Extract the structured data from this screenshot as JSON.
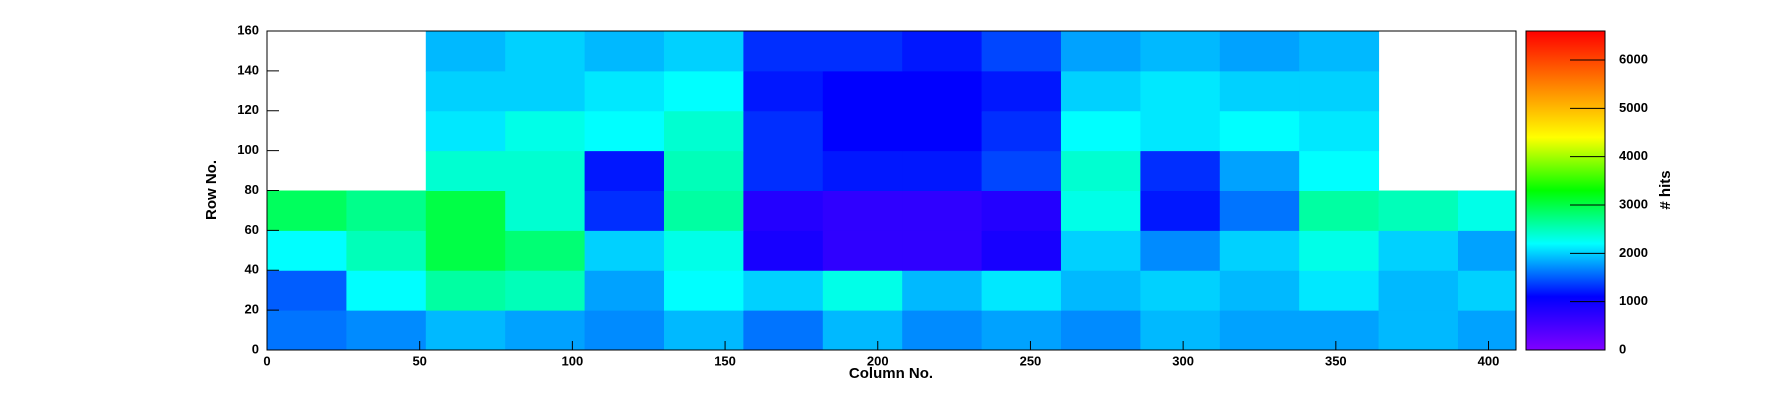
{
  "chart_data": {
    "type": "heatmap",
    "xlabel": "Column No.",
    "ylabel": "Row No.",
    "zlabel": "# hits",
    "xbins": [
      0,
      26,
      52,
      78,
      104,
      130,
      156,
      182,
      208,
      234,
      260,
      286,
      312,
      338,
      364,
      390,
      409
    ],
    "ybins": [
      0,
      20,
      40,
      60,
      80,
      100,
      120,
      140,
      160
    ],
    "z": [
      [
        1600,
        1700,
        1900,
        1800,
        1700,
        1900,
        1600,
        1900,
        1700,
        1800,
        1700,
        1900,
        1800,
        1800,
        1900,
        1800
      ],
      [
        1500,
        2200,
        2600,
        2500,
        1800,
        2200,
        2000,
        2300,
        1900,
        2100,
        1900,
        2000,
        1900,
        2100,
        1900,
        2000
      ],
      [
        2200,
        2500,
        3000,
        2800,
        2000,
        2300,
        900,
        700,
        700,
        900,
        2000,
        1700,
        2000,
        2300,
        2000,
        1800
      ],
      [
        2900,
        2700,
        3000,
        2400,
        1300,
        2600,
        800,
        700,
        700,
        800,
        2300,
        1200,
        1600,
        2600,
        2500,
        2300
      ],
      [
        null,
        null,
        2400,
        2400,
        1200,
        2500,
        1300,
        1200,
        1200,
        1400,
        2400,
        1300,
        1800,
        2200,
        null,
        null
      ],
      [
        null,
        null,
        2100,
        2300,
        2200,
        2400,
        1300,
        1100,
        1100,
        1300,
        2200,
        2100,
        2200,
        2100,
        null,
        null
      ],
      [
        null,
        null,
        2000,
        2000,
        2100,
        2200,
        1200,
        1100,
        1100,
        1200,
        2000,
        2100,
        2000,
        2000,
        null,
        null
      ],
      [
        null,
        null,
        1900,
        2000,
        1900,
        2000,
        1300,
        1300,
        1200,
        1400,
        1800,
        1900,
        1800,
        1900,
        null,
        null
      ]
    ],
    "xlim": [
      0,
      409
    ],
    "xticks": [
      0,
      50,
      100,
      150,
      200,
      250,
      300,
      350,
      400
    ],
    "ylim": [
      0,
      160
    ],
    "yticks": [
      0,
      20,
      40,
      60,
      80,
      100,
      120,
      140,
      160
    ],
    "zlim": [
      0,
      6600
    ],
    "zticks": [
      0,
      1000,
      2000,
      3000,
      4000,
      5000,
      6000
    ],
    "colorscale": [
      "#8000ff",
      "#0000ff",
      "#00ffff",
      "#00ff00",
      "#ffff00",
      "#ff8000",
      "#ff0000"
    ]
  }
}
